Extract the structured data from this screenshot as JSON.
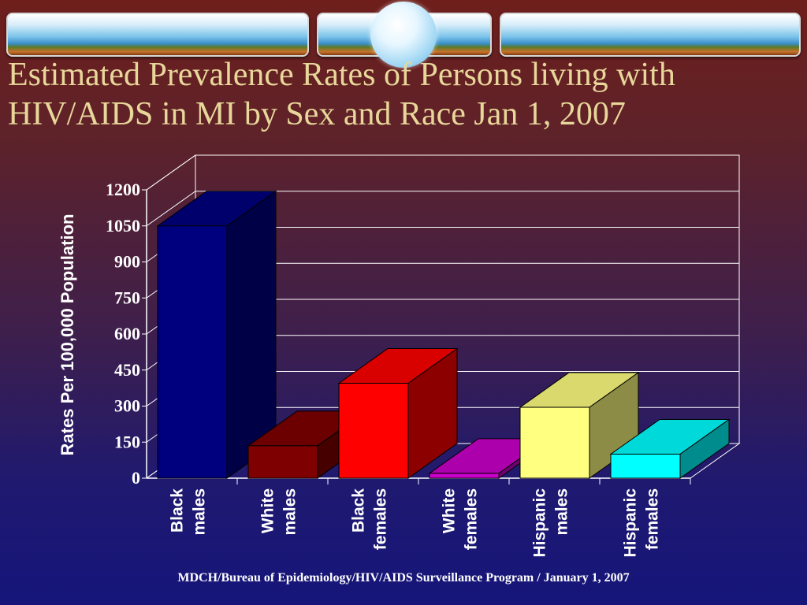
{
  "title_lines": [
    "Estimated Prevalence Rates of Persons living with",
    "HIV/AIDS in MI by Sex and Race Jan 1, 2007"
  ],
  "footer": "MDCH/Bureau of Epidemiology/HIV/AIDS Surveillance Program / January 1, 2007",
  "chart_data": {
    "type": "bar",
    "title": "Estimated Prevalence Rates of Persons living with HIV/AIDS in MI by Sex and Race Jan 1, 2007",
    "ylabel": "Rates Per 100,000 Population",
    "xlabel": "",
    "ylim": [
      0,
      1200
    ],
    "yticks": [
      0,
      150,
      300,
      450,
      600,
      750,
      900,
      1050,
      1200
    ],
    "grid": true,
    "legend": "none",
    "categories": [
      [
        "Black",
        "males"
      ],
      [
        "White",
        "males"
      ],
      [
        "Black",
        "females"
      ],
      [
        "White",
        "females"
      ],
      [
        "Hispanic",
        "males"
      ],
      [
        "Hispanic",
        "females"
      ]
    ],
    "values": [
      1050,
      135,
      395,
      20,
      295,
      100
    ],
    "colors": [
      "#00007f",
      "#7f0000",
      "#ff0000",
      "#cc00cc",
      "#ffff80",
      "#00ffff"
    ]
  }
}
